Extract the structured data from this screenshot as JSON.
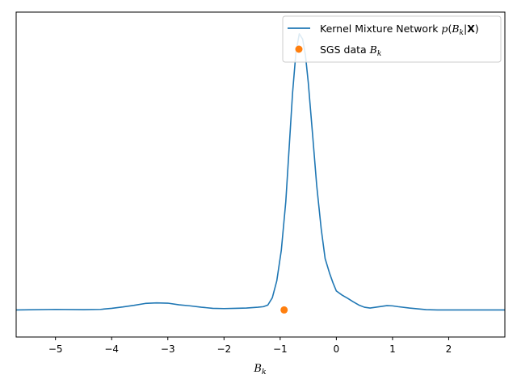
{
  "chart_data": {
    "type": "line",
    "title": "",
    "xlabel": "B_k",
    "xlabel_main": "B",
    "xlabel_sub": "k",
    "ylabel": "",
    "xlim": [
      -5.7,
      3.0
    ],
    "ylim": [
      -0.1,
      1.1
    ],
    "grid": false,
    "legend_placement": "top-right",
    "x_ticks": [
      -5,
      -4,
      -3,
      -2,
      -1,
      0,
      1,
      2
    ],
    "x_tick_labels": [
      "−5",
      "−4",
      "−3",
      "−2",
      "−1",
      "0",
      "1",
      "2"
    ],
    "y_ticks": [],
    "series": [
      {
        "name": "Kernel Mixture Network p(B_k|X)",
        "legend_parts": [
          "Kernel Mixture Network ",
          "p",
          "(",
          "B",
          "k",
          "|",
          "X",
          ")"
        ],
        "type": "line",
        "color": "#1f77b4",
        "x": [
          -5.7,
          -5.0,
          -4.5,
          -4.2,
          -4.0,
          -3.8,
          -3.6,
          -3.4,
          -3.2,
          -3.0,
          -2.8,
          -2.6,
          -2.4,
          -2.2,
          -2.0,
          -1.8,
          -1.6,
          -1.4,
          -1.3,
          -1.22,
          -1.14,
          -1.06,
          -0.98,
          -0.9,
          -0.84,
          -0.78,
          -0.72,
          -0.66,
          -0.6,
          -0.55,
          -0.5,
          -0.42,
          -0.35,
          -0.27,
          -0.2,
          -0.12,
          -0.06,
          0.0,
          0.1,
          0.2,
          0.3,
          0.4,
          0.5,
          0.6,
          0.7,
          0.8,
          0.9,
          1.0,
          1.1,
          1.3,
          1.6,
          1.8,
          2.0,
          2.3,
          2.6,
          3.0
        ],
        "y": [
          0.0,
          0.002,
          0.001,
          0.002,
          0.006,
          0.011,
          0.017,
          0.024,
          0.026,
          0.025,
          0.019,
          0.015,
          0.01,
          0.006,
          0.005,
          0.006,
          0.007,
          0.01,
          0.012,
          0.018,
          0.045,
          0.108,
          0.22,
          0.4,
          0.6,
          0.8,
          0.95,
          1.02,
          1.0,
          0.94,
          0.84,
          0.64,
          0.46,
          0.3,
          0.19,
          0.135,
          0.1,
          0.07,
          0.055,
          0.043,
          0.03,
          0.018,
          0.01,
          0.007,
          0.01,
          0.013,
          0.016,
          0.015,
          0.012,
          0.007,
          0.001,
          0.0,
          0.0,
          0.0,
          0.0,
          0.0
        ]
      },
      {
        "name": "SGS data B_k",
        "legend_parts": [
          "SGS data ",
          "B",
          "k"
        ],
        "type": "scatter",
        "color": "#ff7f0e",
        "x": [
          -0.93
        ],
        "y": [
          0.0
        ]
      }
    ]
  }
}
